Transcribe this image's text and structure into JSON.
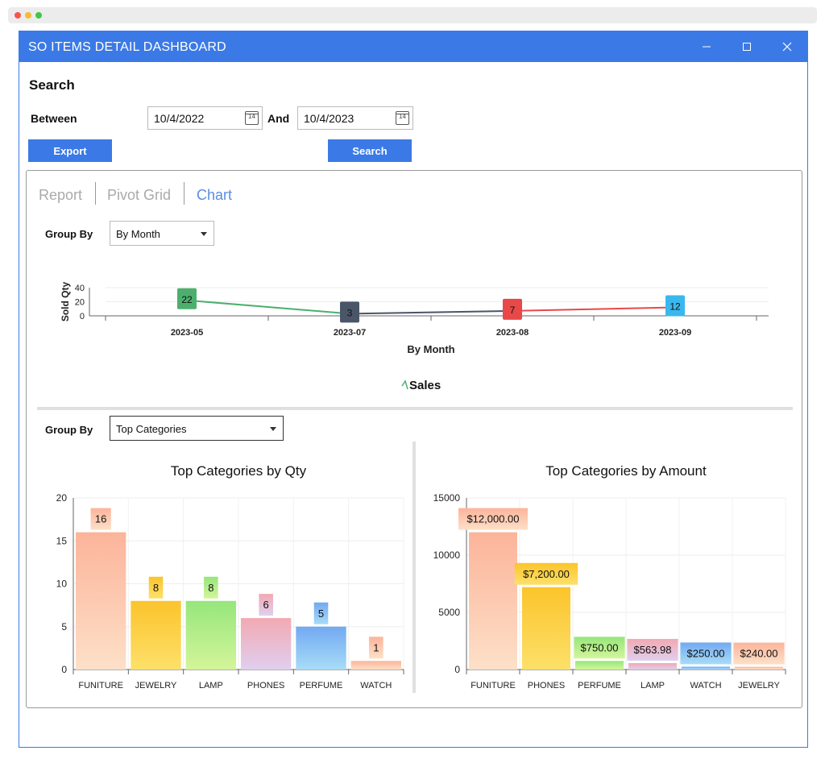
{
  "window": {
    "title": "SO ITEMS DETAIL DASHBOARD"
  },
  "search": {
    "heading": "Search",
    "between_label": "Between",
    "from_date": "10/4/2022",
    "and_label": "And",
    "to_date": "10/4/2023",
    "calendar_day": "14",
    "export_label": "Export",
    "search_label": "Search"
  },
  "tabs": [
    {
      "label": "Report"
    },
    {
      "label": "Pivot Grid"
    },
    {
      "label": "Chart",
      "active": true
    }
  ],
  "top_group": {
    "label": "Group By",
    "value": "By Month"
  },
  "bottom_group": {
    "label": "Group By",
    "value": "Top Categories"
  },
  "colors": {
    "accent": "#3b7ae6",
    "tab_active": "#5b8de0"
  },
  "chart_data": [
    {
      "type": "line",
      "categories": [
        "2023-05",
        "2023-07",
        "2023-08",
        "2023-09"
      ],
      "series": [
        {
          "name": "Sales",
          "values": [
            22,
            3,
            7,
            12
          ]
        }
      ],
      "label_colors": [
        "#4caf6e",
        "#4a5568",
        "#e84848",
        "#3ab8ee"
      ],
      "ylabel": "Sold Qty",
      "xlabel": "By Month",
      "y_ticks": [
        0,
        20,
        40
      ],
      "ylim": [
        0,
        40
      ]
    },
    {
      "type": "bar",
      "title": "Top Categories by Qty",
      "categories": [
        "FUNITURE",
        "JEWELRY",
        "LAMP",
        "PHONES",
        "PERFUME",
        "WATCH"
      ],
      "values": [
        16,
        8,
        8,
        6,
        5,
        1
      ],
      "labels": [
        "16",
        "8",
        "8",
        "6",
        "5",
        "1"
      ],
      "y_ticks": [
        0,
        5,
        10,
        15,
        20
      ],
      "ylim": [
        0,
        20
      ],
      "gradients": [
        [
          "#fcb49a",
          "#fde0c8"
        ],
        [
          "#fbc42c",
          "#fde06a"
        ],
        [
          "#96e67c",
          "#d4f59a"
        ],
        [
          "#f2a9b2",
          "#e0cfef"
        ],
        [
          "#72a9f2",
          "#a8dcf7"
        ],
        [
          "#fcb49a",
          "#fde0c8"
        ]
      ]
    },
    {
      "type": "bar",
      "title": "Top Categories by Amount",
      "categories": [
        "FUNITURE",
        "PHONES",
        "PERFUME",
        "LAMP",
        "WATCH",
        "JEWELRY"
      ],
      "values": [
        12000,
        7200,
        750,
        563.98,
        250,
        240
      ],
      "labels": [
        "$12,000.00",
        "$7,200.00",
        "$750.00",
        "$563.98",
        "$250.00",
        "$240.00"
      ],
      "y_ticks": [
        0,
        5000,
        10000,
        15000
      ],
      "ylim": [
        0,
        15000
      ],
      "gradients": [
        [
          "#fcb49a",
          "#fde0c8"
        ],
        [
          "#fbc42c",
          "#fde06a"
        ],
        [
          "#96e67c",
          "#d4f59a"
        ],
        [
          "#f2a9b2",
          "#e0cfef"
        ],
        [
          "#72a9f2",
          "#a8dcf7"
        ],
        [
          "#fcb49a",
          "#fde0c8"
        ]
      ]
    }
  ]
}
